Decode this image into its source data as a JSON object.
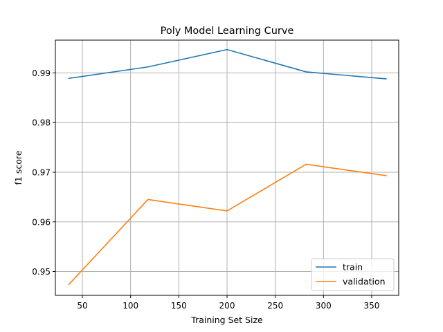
{
  "chart_data": {
    "type": "line",
    "title": "Poly Model Learning Curve",
    "xlabel": "Training Set Size",
    "ylabel": "f1 score",
    "xlim": [
      22,
      378
    ],
    "ylim": [
      0.9452,
      0.9966
    ],
    "xticks": [
      50,
      100,
      150,
      200,
      250,
      300,
      350
    ],
    "yticks": [
      0.95,
      0.96,
      0.97,
      0.98,
      0.99
    ],
    "ytick_format": 2,
    "grid": true,
    "legend_position": "lower-right",
    "x": [
      36,
      118,
      200,
      282,
      365
    ],
    "series": [
      {
        "name": "train",
        "color": "#1f77b4",
        "values": [
          0.9889,
          0.9912,
          0.9947,
          0.9902,
          0.9888
        ]
      },
      {
        "name": "validation",
        "color": "#ff7f0e",
        "values": [
          0.9474,
          0.9645,
          0.9622,
          0.9716,
          0.9693
        ]
      }
    ]
  }
}
